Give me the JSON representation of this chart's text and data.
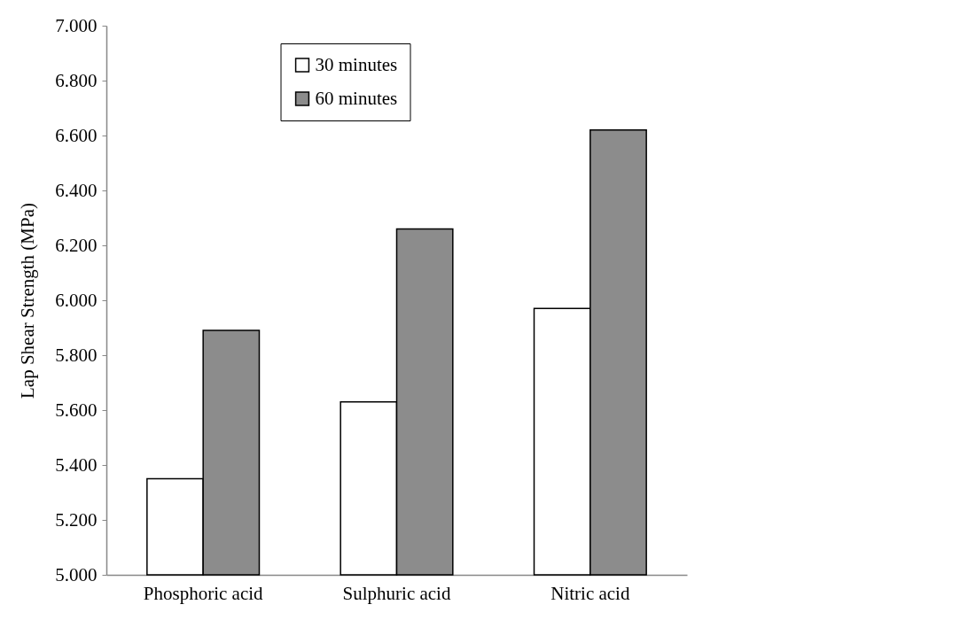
{
  "chart_data": {
    "type": "bar",
    "ylabel": "Lap Shear Strength (MPa)",
    "categories": [
      "Phosphoric acid",
      "Sulphuric acid",
      "Nitric acid"
    ],
    "series": [
      {
        "name": "30 minutes",
        "color": "#ffffff",
        "values": [
          5.35,
          5.63,
          5.97
        ]
      },
      {
        "name": "60 minutes",
        "color": "#8c8c8c",
        "values": [
          5.89,
          6.26,
          6.62
        ]
      }
    ],
    "ylim": [
      5,
      7
    ],
    "yticks": [
      {
        "value": 5,
        "label": "5.000"
      },
      {
        "value": 5.2,
        "label": "5.200"
      },
      {
        "value": 5.4,
        "label": "5.400"
      },
      {
        "value": 5.6,
        "label": "5.600"
      },
      {
        "value": 5.8,
        "label": "5.800"
      },
      {
        "value": 6,
        "label": "6.000"
      },
      {
        "value": 6.2,
        "label": "6.200"
      },
      {
        "value": 6.4,
        "label": "6.400"
      },
      {
        "value": 6.6,
        "label": "6.600"
      },
      {
        "value": 6.8,
        "label": "6.800"
      },
      {
        "value": 7,
        "label": "7.000"
      }
    ],
    "grid": false,
    "legend": "top"
  }
}
